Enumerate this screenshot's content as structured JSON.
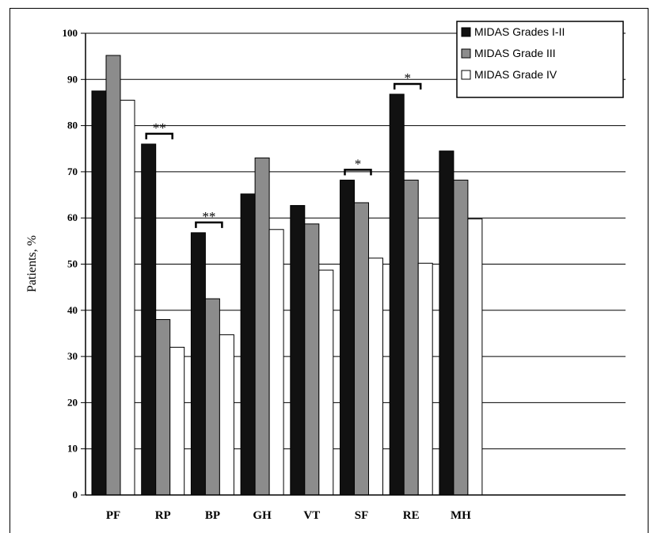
{
  "chart_data": {
    "type": "bar",
    "title": "",
    "xlabel": "",
    "ylabel": "Patients, %",
    "ylim": [
      0,
      100
    ],
    "yticks": [
      0,
      10,
      20,
      30,
      40,
      50,
      60,
      70,
      80,
      90,
      100
    ],
    "grid": true,
    "legend_position": "top-right",
    "categories": [
      "PF",
      "RP",
      "BP",
      "GH",
      "VT",
      "SF",
      "RE",
      "MH"
    ],
    "series": [
      {
        "name": "MIDAS Grades I-II",
        "color": "#111111",
        "values": [
          87.5,
          76,
          56.8,
          65.2,
          62.7,
          68.2,
          86.8,
          74.5
        ]
      },
      {
        "name": "MIDAS Grade III",
        "color": "#8c8c8c",
        "values": [
          95.2,
          38,
          42.5,
          73,
          58.7,
          63.3,
          68.2,
          68.2
        ]
      },
      {
        "name": "MIDAS Grade IV",
        "color": "#ffffff",
        "values": [
          85.5,
          32,
          34.7,
          57.5,
          48.7,
          51.3,
          50.2,
          59.8
        ]
      }
    ],
    "significance": [
      {
        "category": "RP",
        "label": "**"
      },
      {
        "category": "BP",
        "label": "**"
      },
      {
        "category": "SF",
        "label": "*"
      },
      {
        "category": "RE",
        "label": "*"
      }
    ]
  }
}
